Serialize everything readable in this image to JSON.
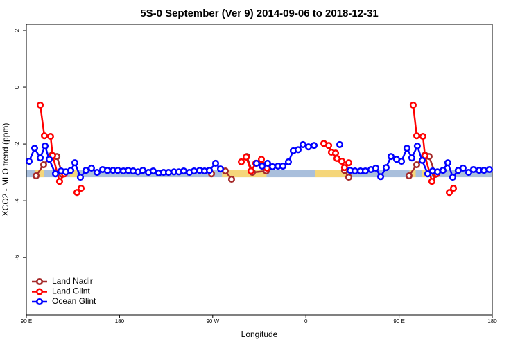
{
  "chart_data": {
    "type": "line",
    "title": "5S-0 September (Ver 9)   2014-09-06 to 2018-12-31",
    "x_label": "Longitude",
    "y_label": "XCO2 - MLO trend (ppm)",
    "xlim": [
      90,
      540
    ],
    "ylim": [
      -8.02,
      2.22
    ],
    "xticks": [
      {
        "value": 90,
        "label": "90 E"
      },
      180,
      {
        "value": 270,
        "label": "90 W"
      },
      {
        "value": 360,
        "label": "0"
      },
      {
        "value": 450,
        "label": "90 E"
      },
      {
        "value": 540,
        "label": "180"
      }
    ],
    "yticks": [
      2,
      0,
      -2,
      -4,
      -6
    ],
    "reference_band": {
      "range": [
        -3.17,
        -2.9
      ],
      "color": "#a9bfdc"
    },
    "highlight_spans": {
      "color": "#f5d67a",
      "spans": [
        [
          98,
          107
        ],
        [
          132,
          139
        ],
        [
          279,
          322
        ],
        [
          369,
          403
        ],
        [
          460,
          466
        ],
        [
          472,
          479
        ]
      ]
    },
    "legend": "bottom-left",
    "series": [
      {
        "name": "Land Nadir",
        "color": "#a52a2a",
        "x": [
          99.4,
          106.7,
          114.8,
          119.5,
          124.8,
          null,
          268.8,
          null,
          282.2,
          288.2,
          null,
          302.9,
          308.3,
          321.7,
          null,
          397.3,
          401.4,
          null,
          459.6,
          467.0,
          475.0,
          479.0,
          485.1
        ],
        "values": [
          -3.12,
          -2.73,
          -2.39,
          -2.44,
          -3.07,
          null,
          -3.05,
          null,
          -2.95,
          -3.24,
          null,
          -2.44,
          -3.0,
          -2.95,
          null,
          -2.93,
          -3.17,
          null,
          -3.12,
          -2.73,
          -2.39,
          -2.44,
          -3.07
        ]
      },
      {
        "name": "Land Glint",
        "color": "#ff0000",
        "x": [
          103.4,
          107.4,
          113.4,
          115.4,
          122.1,
          126.8,
          null,
          138.9,
          142.9,
          null,
          297.6,
          302.3,
          307.0,
          311.6,
          317.0,
          322.4,
          null,
          377.3,
          382.0,
          384.6,
          388.7,
          390.0,
          394.7,
          397.3,
          401.4,
          null,
          463.6,
          467.0,
          473.0,
          475.0,
          481.7,
          486.4,
          null,
          498.5,
          502.5
        ],
        "values": [
          -0.63,
          -1.71,
          -1.73,
          -2.41,
          -3.32,
          -3.05,
          null,
          -3.71,
          -3.56,
          null,
          -2.63,
          -2.46,
          -2.95,
          -2.68,
          -2.54,
          -2.85,
          null,
          -1.98,
          -2.05,
          -2.29,
          -2.32,
          -2.51,
          -2.61,
          -2.83,
          -2.66,
          null,
          -0.63,
          -1.71,
          -1.73,
          -2.41,
          -3.32,
          -3.05,
          null,
          -3.71,
          -3.56
        ]
      },
      {
        "name": "Ocean Glint",
        "color": "#0000ff",
        "x": [
          92.7,
          98.0,
          103.4,
          108.1,
          112.1,
          118.1,
          123.5,
          128.2,
          132.9,
          136.9,
          142.2,
          147.6,
          152.9,
          158.3,
          163.7,
          168.3,
          173.7,
          178.4,
          183.7,
          188.4,
          193.1,
          197.8,
          202.5,
          207.9,
          212.5,
          217.9,
          222.6,
          227.3,
          232.6,
          237.3,
          242.0,
          247.4,
          252.0,
          257.4,
          262.1,
          266.8,
          272.8,
          277.5,
          null,
          312.3,
          317.7,
          323.0,
          327.7,
          333.1,
          337.8,
          343.1,
          347.8,
          352.5,
          357.2,
          362.5,
          367.9,
          null,
          392.7,
          null,
          402.7,
          407.4,
          412.7,
          417.4,
          422.8,
          427.5,
          432.2,
          437.5,
          442.2,
          447.6,
          452.3,
          457.6,
          462.3,
          467.6,
          472.3,
          477.7,
          482.4,
          487.1,
          492.4,
          497.1,
          501.8,
          507.1,
          511.8,
          517.2,
          521.9,
          527.3,
          531.9,
          537.3
        ],
        "values": [
          -2.61,
          -2.15,
          -2.49,
          -2.07,
          -2.54,
          -3.05,
          -2.95,
          -2.98,
          -2.93,
          -2.66,
          -3.17,
          -2.93,
          -2.85,
          -3.0,
          -2.9,
          -2.93,
          -2.93,
          -2.93,
          -2.95,
          -2.93,
          -2.95,
          -2.98,
          -2.93,
          -3.0,
          -2.95,
          -3.02,
          -3.0,
          -3.0,
          -2.98,
          -2.98,
          -2.95,
          -3.0,
          -2.95,
          -2.93,
          -2.95,
          -2.93,
          -2.68,
          -2.88,
          null,
          -2.68,
          -2.78,
          -2.68,
          -2.8,
          -2.78,
          -2.78,
          -2.63,
          -2.24,
          -2.2,
          -2.02,
          -2.1,
          -2.05,
          null,
          -2.02,
          null,
          -2.93,
          -2.95,
          -2.95,
          -2.95,
          -2.9,
          -2.85,
          -3.15,
          -2.83,
          -2.44,
          -2.54,
          -2.61,
          -2.15,
          -2.49,
          -2.07,
          -2.58,
          -3.05,
          -2.95,
          -2.98,
          -2.93,
          -2.66,
          -3.17,
          -2.93,
          -2.85,
          -3.0,
          -2.9,
          -2.93,
          -2.93,
          -2.9
        ]
      }
    ]
  }
}
